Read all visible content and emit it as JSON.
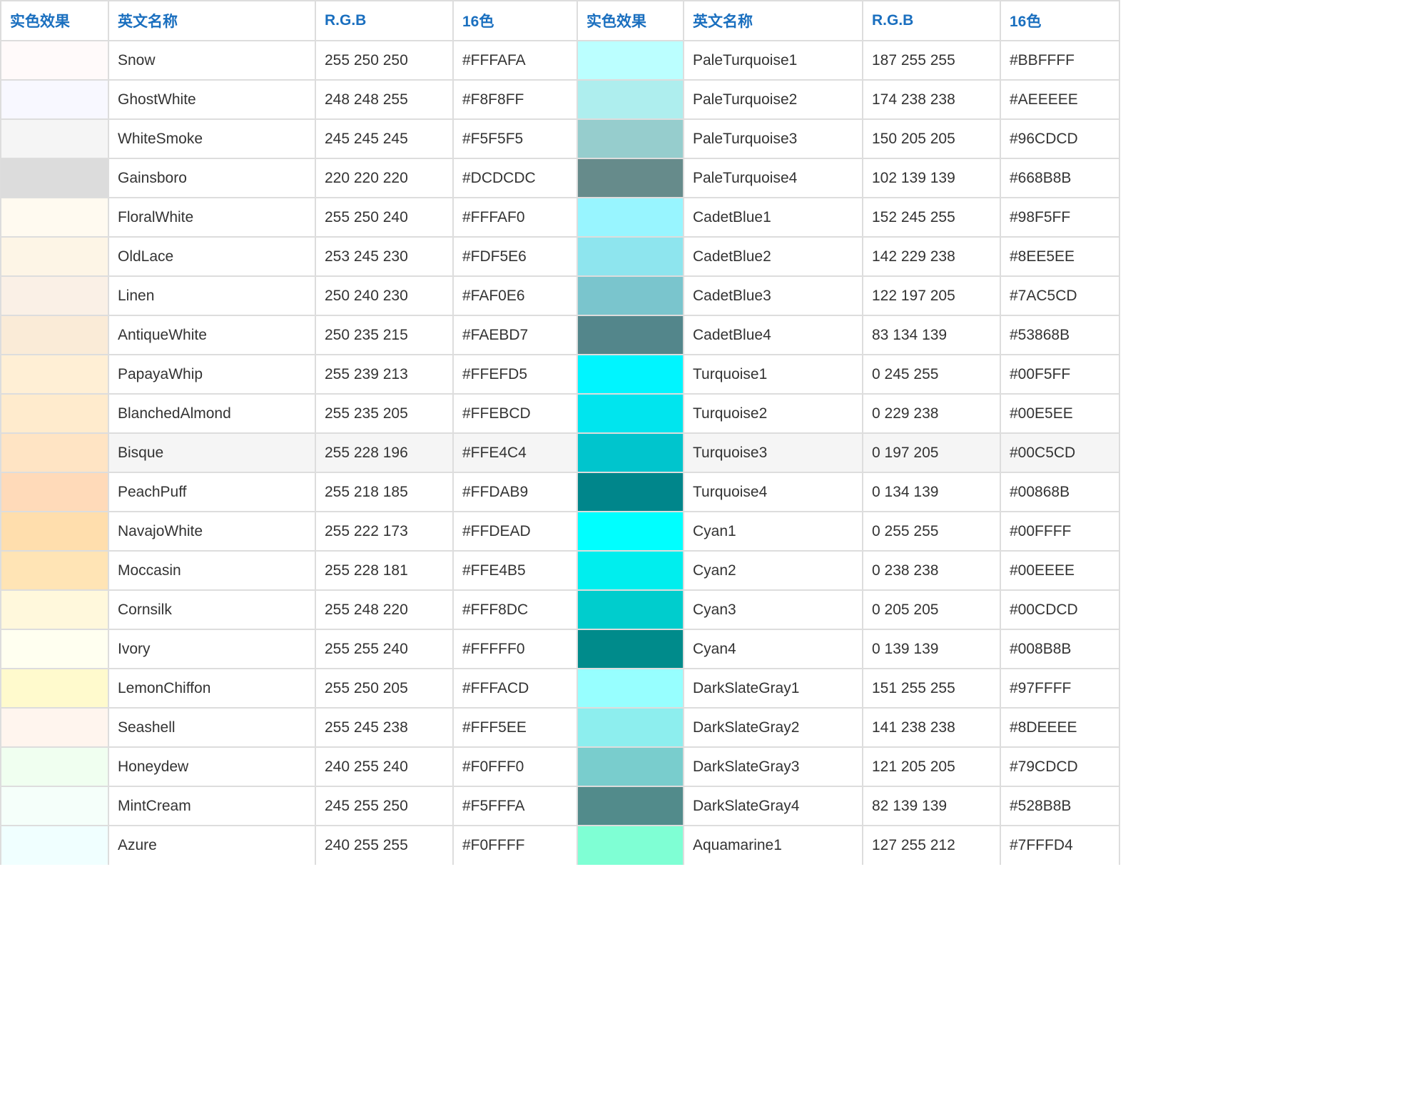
{
  "headers": [
    "实色效果",
    "英文名称",
    "R.G.B",
    "16色",
    "实色效果",
    "英文名称",
    "R.G.B",
    "16色"
  ],
  "rows": [
    {
      "left": {
        "name": "Snow",
        "rgb": "255 250 250",
        "hex": "#FFFAFA"
      },
      "right": {
        "name": "PaleTurquoise1",
        "rgb": "187 255 255",
        "hex": "#BBFFFF"
      }
    },
    {
      "left": {
        "name": "GhostWhite",
        "rgb": "248 248 255",
        "hex": "#F8F8FF"
      },
      "right": {
        "name": "PaleTurquoise2",
        "rgb": "174 238 238",
        "hex": "#AEEEEE"
      }
    },
    {
      "left": {
        "name": "WhiteSmoke",
        "rgb": "245 245 245",
        "hex": "#F5F5F5"
      },
      "right": {
        "name": "PaleTurquoise3",
        "rgb": "150 205 205",
        "hex": "#96CDCD"
      }
    },
    {
      "left": {
        "name": "Gainsboro",
        "rgb": "220 220 220",
        "hex": "#DCDCDC"
      },
      "right": {
        "name": "PaleTurquoise4",
        "rgb": "102 139 139",
        "hex": "#668B8B"
      }
    },
    {
      "left": {
        "name": "FloralWhite",
        "rgb": "255 250 240",
        "hex": "#FFFAF0"
      },
      "right": {
        "name": "CadetBlue1",
        "rgb": "152 245 255",
        "hex": "#98F5FF"
      }
    },
    {
      "left": {
        "name": "OldLace",
        "rgb": "253 245 230",
        "hex": "#FDF5E6"
      },
      "right": {
        "name": "CadetBlue2",
        "rgb": "142 229 238",
        "hex": "#8EE5EE"
      }
    },
    {
      "left": {
        "name": "Linen",
        "rgb": "250 240 230",
        "hex": "#FAF0E6"
      },
      "right": {
        "name": "CadetBlue3",
        "rgb": "122 197 205",
        "hex": "#7AC5CD"
      }
    },
    {
      "left": {
        "name": "AntiqueWhite",
        "rgb": "250 235 215",
        "hex": "#FAEBD7"
      },
      "right": {
        "name": "CadetBlue4",
        "rgb": "83 134 139",
        "hex": "#53868B"
      }
    },
    {
      "left": {
        "name": "PapayaWhip",
        "rgb": "255 239 213",
        "hex": "#FFEFD5"
      },
      "right": {
        "name": "Turquoise1",
        "rgb": "0 245 255",
        "hex": "#00F5FF"
      }
    },
    {
      "left": {
        "name": "BlanchedAlmond",
        "rgb": "255 235 205",
        "hex": "#FFEBCD"
      },
      "right": {
        "name": "Turquoise2",
        "rgb": "0 229 238",
        "hex": "#00E5EE"
      }
    },
    {
      "left": {
        "name": "Bisque",
        "rgb": "255 228 196",
        "hex": "#FFE4C4"
      },
      "right": {
        "name": "Turquoise3",
        "rgb": "0 197 205",
        "hex": "#00C5CD"
      },
      "highlight": true
    },
    {
      "left": {
        "name": "PeachPuff",
        "rgb": "255 218 185",
        "hex": "#FFDAB9"
      },
      "right": {
        "name": "Turquoise4",
        "rgb": "0 134 139",
        "hex": "#00868B"
      }
    },
    {
      "left": {
        "name": "NavajoWhite",
        "rgb": "255 222 173",
        "hex": "#FFDEAD"
      },
      "right": {
        "name": "Cyan1",
        "rgb": "0 255 255",
        "hex": "#00FFFF"
      }
    },
    {
      "left": {
        "name": "Moccasin",
        "rgb": "255 228 181",
        "hex": "#FFE4B5"
      },
      "right": {
        "name": "Cyan2",
        "rgb": "0 238 238",
        "hex": "#00EEEE"
      }
    },
    {
      "left": {
        "name": "Cornsilk",
        "rgb": "255 248 220",
        "hex": "#FFF8DC"
      },
      "right": {
        "name": "Cyan3",
        "rgb": "0 205 205",
        "hex": "#00CDCD"
      }
    },
    {
      "left": {
        "name": "Ivory",
        "rgb": "255 255 240",
        "hex": "#FFFFF0"
      },
      "right": {
        "name": "Cyan4",
        "rgb": "0 139 139",
        "hex": "#008B8B"
      }
    },
    {
      "left": {
        "name": "LemonChiffon",
        "rgb": "255 250 205",
        "hex": "#FFFACD"
      },
      "right": {
        "name": "DarkSlateGray1",
        "rgb": "151 255 255",
        "hex": "#97FFFF"
      }
    },
    {
      "left": {
        "name": "Seashell",
        "rgb": "255 245 238",
        "hex": "#FFF5EE"
      },
      "right": {
        "name": "DarkSlateGray2",
        "rgb": "141 238 238",
        "hex": "#8DEEEE"
      }
    },
    {
      "left": {
        "name": "Honeydew",
        "rgb": "240 255 240",
        "hex": "#F0FFF0"
      },
      "right": {
        "name": "DarkSlateGray3",
        "rgb": "121 205 205",
        "hex": "#79CDCD"
      }
    },
    {
      "left": {
        "name": "MintCream",
        "rgb": "245 255 250",
        "hex": "#F5FFFA"
      },
      "right": {
        "name": "DarkSlateGray4",
        "rgb": "82 139 139",
        "hex": "#528B8B"
      }
    },
    {
      "left": {
        "name": "Azure",
        "rgb": "240 255 255",
        "hex": "#F0FFFF"
      },
      "right": {
        "name": "Aquamarine1",
        "rgb": "127 255 212",
        "hex": "#7FFFD4"
      }
    }
  ]
}
